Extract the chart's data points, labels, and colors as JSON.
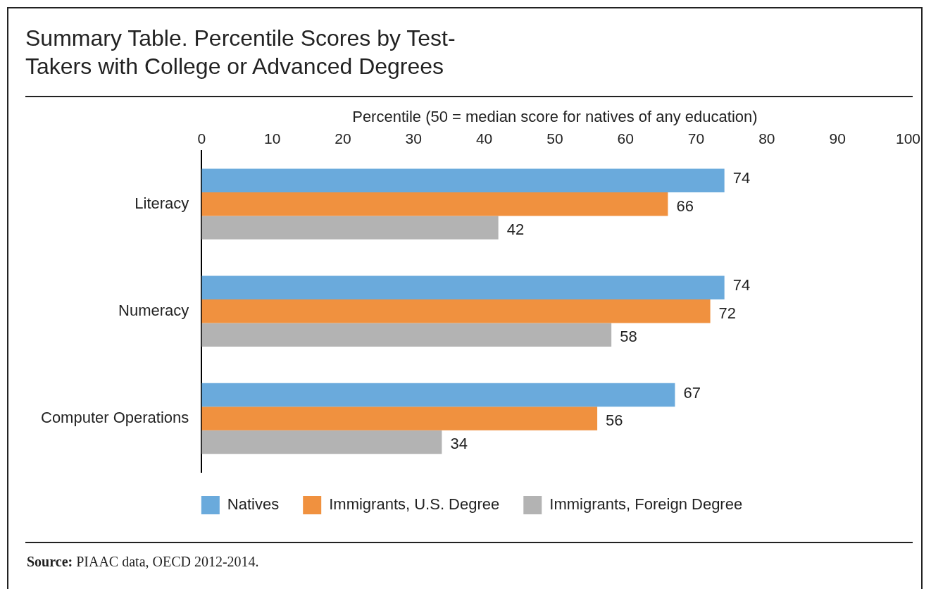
{
  "chart_data": {
    "type": "bar",
    "orientation": "horizontal",
    "title": "Summary Table. Percentile Scores by Test-Takers with College or Advanced Degrees",
    "xlabel": "Percentile (50 = median score for natives of any education)",
    "categories": [
      "Literacy",
      "Numeracy",
      "Computer Operations"
    ],
    "series": [
      {
        "name": "Natives",
        "color": "#6aaadc",
        "values": [
          74,
          74,
          67
        ]
      },
      {
        "name": "Immigrants, U.S. Degree",
        "color": "#f0913f",
        "values": [
          66,
          72,
          56
        ]
      },
      {
        "name": "Immigrants, Foreign Degree",
        "color": "#b3b3b3",
        "values": [
          42,
          58,
          34
        ]
      }
    ],
    "xlim": [
      0,
      100
    ],
    "xticks": [
      0,
      10,
      20,
      30,
      40,
      50,
      60,
      70,
      80,
      90,
      100
    ],
    "grid": false,
    "legend": "bottom",
    "data_labels": true,
    "annotations": [
      "Source: PIAAC data, OECD 2012-2014."
    ]
  }
}
